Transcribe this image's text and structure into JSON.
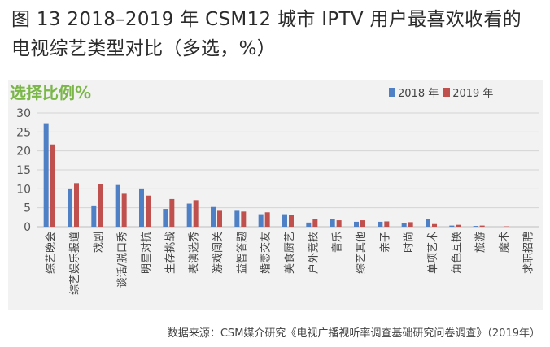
{
  "title": "图 13 2018–2019 年 CSM12 城市 IPTV 用户最喜欢收看的电视综艺类型对比（多选，%）",
  "source": "数据来源：CSM媒介研究《电视广播视听率调查基础研究问卷调查》（2019年）",
  "chart_data": {
    "type": "bar",
    "title": "选择比例%",
    "xlabel": "",
    "ylabel": "",
    "ylim": [
      0,
      30
    ],
    "yticks": [
      0,
      5,
      10,
      15,
      20,
      25,
      30
    ],
    "grid": true,
    "legend": "top-right",
    "categories": [
      "综艺晚会",
      "综艺娱乐报道",
      "戏剧",
      "谈话/脱口秀",
      "明星对抗",
      "生存挑战",
      "表演选秀",
      "游戏闯关",
      "益智答题",
      "婚恋交友",
      "美食厨艺",
      "户外竞技",
      "音乐",
      "综艺其他",
      "亲子",
      "时尚",
      "单项艺术",
      "角色互换",
      "旅游",
      "魔术",
      "求职招聘"
    ],
    "series": [
      {
        "name": "2018 年",
        "color": "#4f7fc4",
        "values": [
          27.3,
          10.1,
          5.6,
          11.0,
          10.1,
          4.7,
          6.1,
          5.2,
          4.2,
          3.3,
          3.3,
          1.1,
          2.0,
          1.3,
          1.3,
          0.9,
          2.0,
          0.3,
          0.2,
          0.0,
          0.0
        ]
      },
      {
        "name": "2019 年",
        "color": "#c0504d",
        "values": [
          21.7,
          11.5,
          11.3,
          8.7,
          8.2,
          7.3,
          7.0,
          4.2,
          4.0,
          3.8,
          3.0,
          2.1,
          1.7,
          1.7,
          1.4,
          1.2,
          0.7,
          0.5,
          0.3,
          0.1,
          0.0
        ]
      }
    ]
  }
}
